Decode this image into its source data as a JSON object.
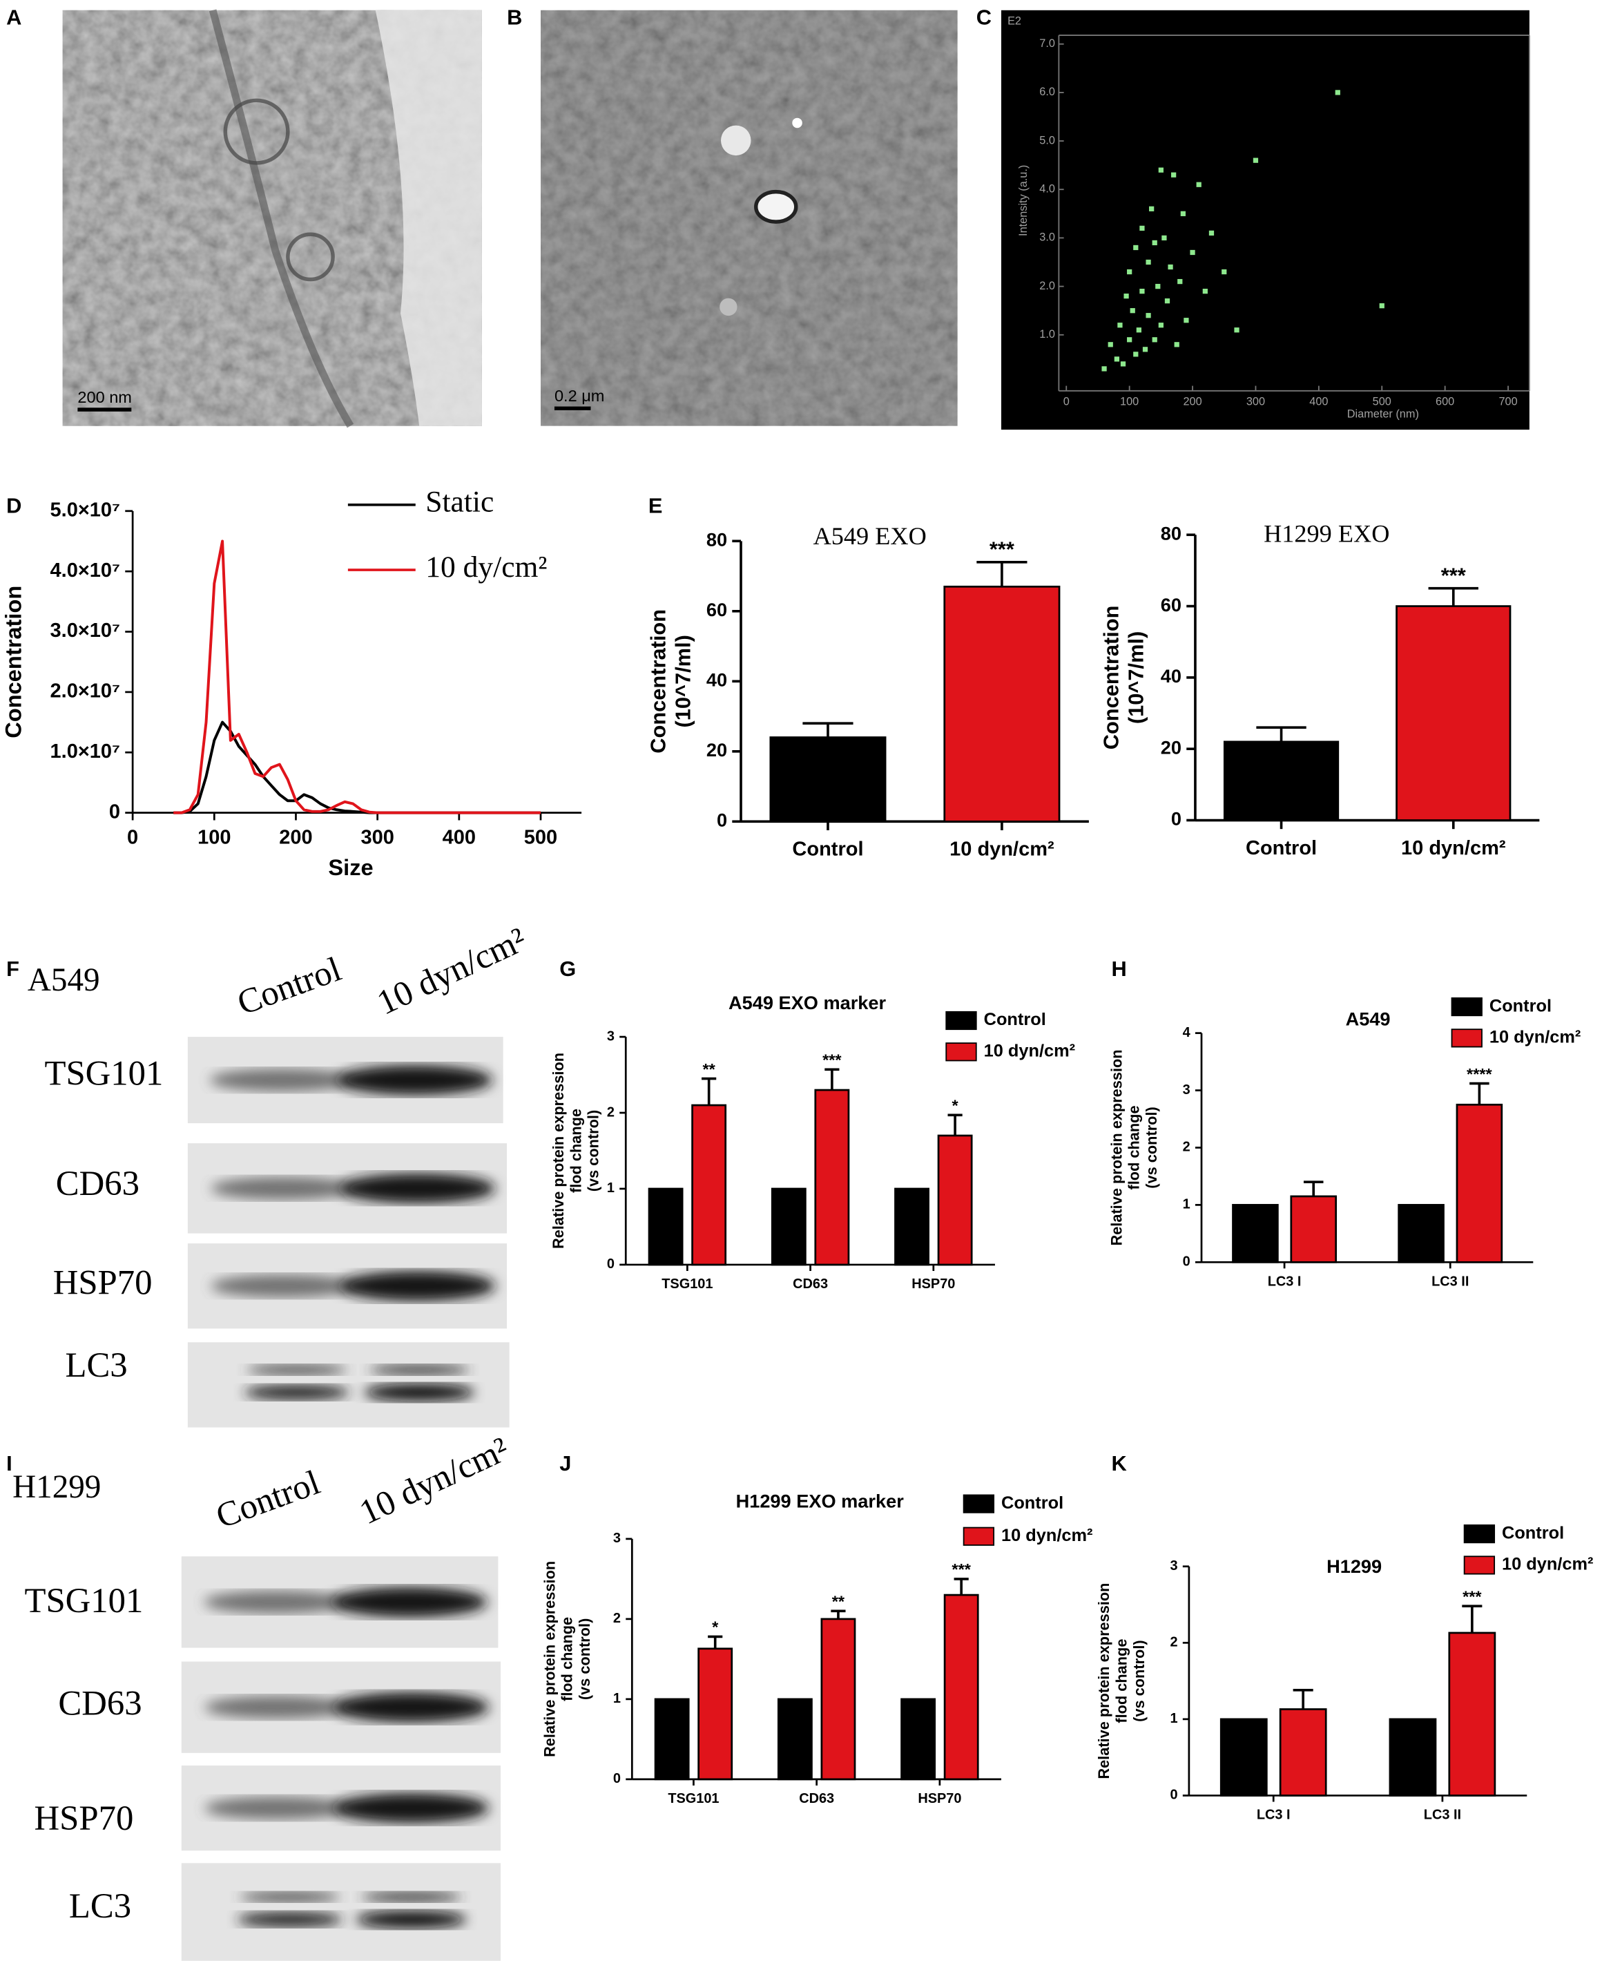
{
  "panel_labels": [
    "A",
    "B",
    "C",
    "D",
    "E",
    "F",
    "G",
    "H",
    "I",
    "J",
    "K"
  ],
  "images": [
    {
      "scale_bar": "200 nm"
    },
    {
      "scale_bar": "0.2 μm"
    }
  ],
  "chart_data": [
    {
      "type": "scatter",
      "exponent_label": "E2",
      "x_label": "Diameter (nm)",
      "y_label": [
        "Intensity (a.u.)"
      ],
      "color": "#8ee88e",
      "x": [
        60,
        70,
        80,
        85,
        90,
        95,
        100,
        100,
        105,
        110,
        110,
        115,
        120,
        120,
        125,
        130,
        130,
        135,
        140,
        140,
        145,
        150,
        150,
        155,
        160,
        165,
        170,
        175,
        180,
        185,
        190,
        200,
        210,
        220,
        230,
        250,
        270,
        300,
        430,
        500
      ],
      "y": [
        0.3,
        0.8,
        0.5,
        1.2,
        0.4,
        1.8,
        0.9,
        2.3,
        1.5,
        0.6,
        2.8,
        1.1,
        1.9,
        3.2,
        0.7,
        2.5,
        1.4,
        3.6,
        0.9,
        2.9,
        2.0,
        1.2,
        4.4,
        3.0,
        1.7,
        2.4,
        4.3,
        0.8,
        2.1,
        3.5,
        1.3,
        2.7,
        4.1,
        1.9,
        3.1,
        2.3,
        1.1,
        4.6,
        6.0,
        1.6
      ],
      "xlim": [
        0,
        700
      ],
      "xticks": [
        0,
        100,
        200,
        300,
        400,
        500,
        600,
        700
      ],
      "ylim": [
        0,
        7
      ],
      "yticks": [
        {
          "value": 1,
          "label": "1.0"
        },
        {
          "value": 2,
          "label": "2.0"
        },
        {
          "value": 3,
          "label": "3.0"
        },
        {
          "value": 4,
          "label": "4.0"
        },
        {
          "value": 5,
          "label": "5.0"
        },
        {
          "value": 6,
          "label": "6.0"
        },
        {
          "value": 7,
          "label": "7.0"
        }
      ]
    },
    {
      "type": "line",
      "x_label": "Size",
      "y_label": [
        "Concentration"
      ],
      "x": [
        50,
        60,
        70,
        80,
        90,
        100,
        110,
        120,
        130,
        140,
        150,
        160,
        170,
        180,
        190,
        200,
        210,
        220,
        230,
        240,
        250,
        260,
        270,
        280,
        290,
        300,
        350,
        400,
        450,
        500
      ],
      "series": [
        {
          "name": "Static",
          "color": "#000000",
          "values": [
            0,
            0,
            200000,
            1500000,
            6000000,
            12000000,
            15000000,
            13500000,
            11000000,
            9500000,
            8000000,
            6000000,
            4500000,
            3000000,
            2000000,
            2000000,
            3000000,
            2500000,
            1500000,
            800000,
            500000,
            300000,
            200000,
            100000,
            0,
            0,
            0,
            0,
            0,
            0
          ]
        },
        {
          "name": "10 dy/cm²",
          "color": "#e0141b",
          "values": [
            0,
            0,
            500000,
            3000000,
            15000000,
            38000000,
            45000000,
            12000000,
            13000000,
            10000000,
            6500000,
            6000000,
            7500000,
            8000000,
            5500000,
            2000000,
            500000,
            200000,
            200000,
            500000,
            1200000,
            1800000,
            1500000,
            500000,
            100000,
            0,
            0,
            0,
            0,
            0
          ]
        }
      ],
      "xlim": [
        0,
        550
      ],
      "xticks": [
        0,
        100,
        200,
        300,
        400,
        500
      ],
      "ylim": [
        0,
        50000000
      ],
      "yticks": [
        0,
        {
          "value": 10000000,
          "label": "1.0×10⁷"
        },
        {
          "value": 20000000,
          "label": "2.0×10⁷"
        },
        {
          "value": 30000000,
          "label": "3.0×10⁷"
        },
        {
          "value": 40000000,
          "label": "4.0×10⁷"
        },
        {
          "value": 50000000,
          "label": "5.0×10⁷"
        }
      ]
    },
    {
      "type": "bar",
      "title": "A549 EXO",
      "y_label": [
        "Concentration",
        "(10^7/ml)"
      ],
      "categories": [
        "Control",
        "10 dyn/cm²"
      ],
      "values": [
        24,
        67
      ],
      "errors": [
        4,
        7
      ],
      "significance": [
        null,
        "***"
      ],
      "colors": [
        "#000000",
        "#e0141b"
      ],
      "ylim": [
        0,
        80
      ],
      "yticks": [
        0,
        20,
        40,
        60,
        80
      ]
    },
    {
      "type": "bar",
      "title": "H1299 EXO",
      "y_label": [
        "Concentration",
        "(10^7/ml)"
      ],
      "categories": [
        "Control",
        "10 dyn/cm²"
      ],
      "values": [
        22,
        60
      ],
      "errors": [
        4,
        5
      ],
      "significance": [
        null,
        "***"
      ],
      "colors": [
        "#000000",
        "#e0141b"
      ],
      "ylim": [
        0,
        80
      ],
      "yticks": [
        0,
        20,
        40,
        60,
        80
      ]
    },
    {
      "type": "bar",
      "title": "A549 EXO marker",
      "y_label": [
        "Relative protein expression",
        "flod change",
        "(vs control)"
      ],
      "categories": [
        "TSG101",
        "CD63",
        "HSP70"
      ],
      "series": [
        {
          "name": "Control",
          "color": "#000000",
          "values": [
            1,
            1,
            1
          ]
        },
        {
          "name": "10 dyn/cm²",
          "color": "#e0141b",
          "values": [
            2.1,
            2.3,
            1.7
          ],
          "errors": [
            0.35,
            0.27,
            0.27
          ],
          "significance": [
            "**",
            "***",
            "*"
          ]
        }
      ],
      "ylim": [
        0,
        3
      ],
      "yticks": [
        0,
        1,
        2,
        3
      ]
    },
    {
      "type": "bar",
      "title": "A549",
      "y_label": [
        "Relative protein expression",
        "flod change",
        "(vs control)"
      ],
      "categories": [
        "LC3 I",
        "LC3 II"
      ],
      "series": [
        {
          "name": "Control",
          "color": "#000000",
          "values": [
            1,
            1
          ]
        },
        {
          "name": "10 dyn/cm²",
          "color": "#e0141b",
          "values": [
            1.15,
            2.75
          ],
          "errors": [
            0.25,
            0.37
          ],
          "significance": [
            null,
            "****"
          ]
        }
      ],
      "ylim": [
        0,
        4
      ],
      "yticks": [
        0,
        1,
        2,
        3,
        4
      ]
    },
    {
      "type": "bar",
      "title": "H1299 EXO marker",
      "y_label": [
        "Relative protein expression",
        "flod change",
        "(vs control)"
      ],
      "categories": [
        "TSG101",
        "CD63",
        "HSP70"
      ],
      "series": [
        {
          "name": "Control",
          "color": "#000000",
          "values": [
            1,
            1,
            1
          ]
        },
        {
          "name": "10 dyn/cm²",
          "color": "#e0141b",
          "values": [
            1.63,
            2.0,
            2.3
          ],
          "errors": [
            0.15,
            0.1,
            0.2
          ],
          "significance": [
            "*",
            "**",
            "***"
          ]
        }
      ],
      "ylim": [
        0,
        3
      ],
      "yticks": [
        0,
        1,
        2,
        3
      ]
    },
    {
      "type": "bar",
      "title": "H1299",
      "y_label": [
        "Relative protein expression",
        "flod change",
        "(vs control)"
      ],
      "categories": [
        "LC3 I",
        "LC3 II"
      ],
      "series": [
        {
          "name": "Control",
          "color": "#000000",
          "values": [
            1,
            1
          ]
        },
        {
          "name": "10 dyn/cm²",
          "color": "#e0141b",
          "values": [
            1.13,
            2.13
          ],
          "errors": [
            0.25,
            0.35
          ],
          "significance": [
            null,
            "***"
          ]
        }
      ],
      "ylim": [
        0,
        3
      ],
      "yticks": [
        0,
        1,
        2,
        3
      ]
    }
  ],
  "blots": [
    {
      "cell_line": "A549",
      "lanes": [
        "Control",
        "10 dyn/cm²"
      ],
      "proteins": [
        "TSG101",
        "CD63",
        "HSP70",
        "LC3"
      ]
    },
    {
      "cell_line": "H1299",
      "lanes": [
        "Control",
        "10 dyn/cm²"
      ],
      "proteins": [
        "TSG101",
        "CD63",
        "HSP70",
        "LC3"
      ]
    }
  ]
}
